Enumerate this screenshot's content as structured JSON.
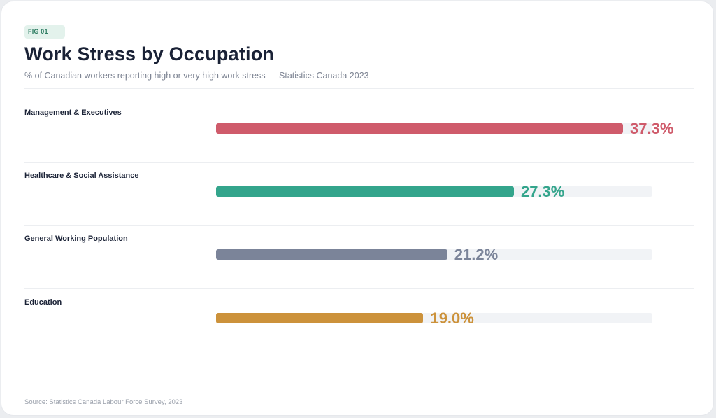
{
  "figure_tag": "FIG 01",
  "colors": {
    "management": "#cf5b6b",
    "healthcare": "#34a58c",
    "general": "#7b8499",
    "education": "#cc923b",
    "track": "#f1f3f6",
    "badge_bg": "#e3f2ec",
    "badge_text": "#2f7d63"
  },
  "chart_data": {
    "type": "bar",
    "orientation": "horizontal",
    "title": "Work Stress by Occupation",
    "subtitle": "% of Canadian workers reporting high or very high work stress — Statistics Canada 2023",
    "xlim": [
      0,
      40
    ],
    "categories": [
      "Management & Executives",
      "Healthcare & Social Assistance",
      "General Working Population",
      "Education"
    ],
    "values": [
      37.3,
      27.3,
      21.2,
      19.0
    ],
    "value_labels": [
      "37.3%",
      "27.3%",
      "21.2%",
      "19.0%"
    ],
    "source": "Source: Statistics Canada Labour Force Survey, 2023"
  }
}
